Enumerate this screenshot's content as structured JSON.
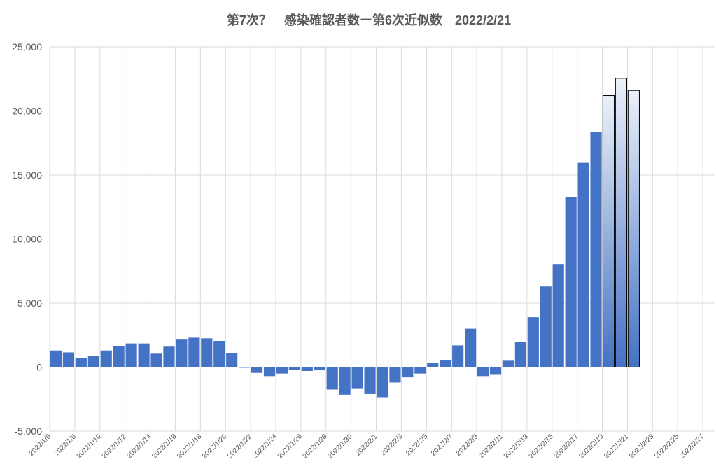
{
  "chart_data": {
    "type": "bar",
    "title": "第7次？　感染確認者数ー第6次近似数　2022/2/21",
    "xlabel": "",
    "ylabel": "",
    "ylim": [
      -5000,
      25000
    ],
    "yticks": [
      -5000,
      0,
      5000,
      10000,
      15000,
      20000,
      25000
    ],
    "ytick_labels": [
      "-5,000",
      "0",
      "5,000",
      "10,000",
      "15,000",
      "20,000",
      "25,000"
    ],
    "grid": true,
    "legend": "none",
    "categories": [
      "2022/1/6",
      "2022/1/7",
      "2022/1/8",
      "2022/1/9",
      "2022/1/10",
      "2022/1/11",
      "2022/1/12",
      "2022/1/13",
      "2022/1/14",
      "2022/1/15",
      "2022/1/16",
      "2022/1/17",
      "2022/1/18",
      "2022/1/19",
      "2022/1/20",
      "2022/1/21",
      "2022/1/22",
      "2022/1/23",
      "2022/1/24",
      "2022/1/25",
      "2022/1/26",
      "2022/1/27",
      "2022/1/28",
      "2022/1/29",
      "2022/1/30",
      "2022/1/31",
      "2022/2/1",
      "2022/2/2",
      "2022/2/3",
      "2022/2/4",
      "2022/2/5",
      "2022/2/6",
      "2022/2/7",
      "2022/2/8",
      "2022/2/9",
      "2022/2/10",
      "2022/2/11",
      "2022/2/12",
      "2022/2/13",
      "2022/2/14",
      "2022/2/15",
      "2022/2/16",
      "2022/2/17",
      "2022/2/18",
      "2022/2/19",
      "2022/2/20",
      "2022/2/21",
      "2022/2/22",
      "2022/2/23",
      "2022/2/24",
      "2022/2/25",
      "2022/2/26",
      "2022/2/27"
    ],
    "tick_labels": [
      "2022/1/6",
      "2022/1/8",
      "2022/1/10",
      "2022/1/12",
      "2022/1/14",
      "2022/1/16",
      "2022/1/18",
      "2022/1/20",
      "2022/1/22",
      "2022/1/24",
      "2022/1/26",
      "2022/1/28",
      "2022/1/30",
      "2022/2/1",
      "2022/2/3",
      "2022/2/5",
      "2022/2/7",
      "2022/2/9",
      "2022/2/11",
      "2022/2/13",
      "2022/2/15",
      "2022/2/17",
      "2022/2/19",
      "2022/2/21",
      "2022/2/23",
      "2022/2/25",
      "2022/2/27"
    ],
    "values": [
      1300,
      1150,
      700,
      850,
      1300,
      1650,
      1850,
      1850,
      1050,
      1600,
      2150,
      2300,
      2250,
      2050,
      1100,
      -50,
      -450,
      -700,
      -500,
      -200,
      -300,
      -250,
      -1750,
      -2150,
      -1700,
      -2100,
      -2350,
      -1200,
      -800,
      -500,
      300,
      550,
      1700,
      3000,
      -700,
      -600,
      500,
      1950,
      3900,
      6300,
      8050,
      13300,
      15950,
      18350,
      21200,
      22550,
      21600,
      null,
      null,
      null,
      null,
      null,
      null
    ],
    "highlighted_categories": [
      "2022/2/19",
      "2022/2/20",
      "2022/2/21"
    ],
    "colors": {
      "bar": "#4472C4",
      "highlight_top": "#ECF1FA",
      "highlight_bottom": "#4472C4",
      "highlight_border": "#000000",
      "grid": "#D9D9D9",
      "text": "#595959"
    }
  }
}
